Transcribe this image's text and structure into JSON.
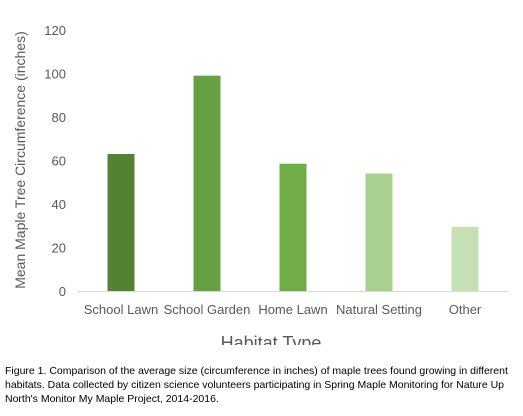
{
  "chart_data": {
    "type": "bar",
    "categories": [
      "School Lawn",
      "School Garden",
      "Home Lawn",
      "Natural Setting",
      "Other"
    ],
    "values": [
      63,
      99,
      58.5,
      54,
      29.5
    ],
    "xlabel": "Habitat Type",
    "ylabel": "Mean Maple Tree Circumference (inches)",
    "ylim": [
      0,
      120
    ],
    "yticks": [
      0,
      20,
      40,
      60,
      80,
      100,
      120
    ],
    "grid": false,
    "bar_colors": [
      "#548235",
      "#65A043",
      "#70AD47",
      "#A9D08E",
      "#C5E0B4"
    ]
  },
  "caption": "Figure 1. Comparison of the average size (circumference in inches) of maple trees found growing in different habitats. Data collected by citizen science volunteers participating in Spring Maple Monitoring for Nature Up North's Monitor My Maple Project, 2014-2016."
}
